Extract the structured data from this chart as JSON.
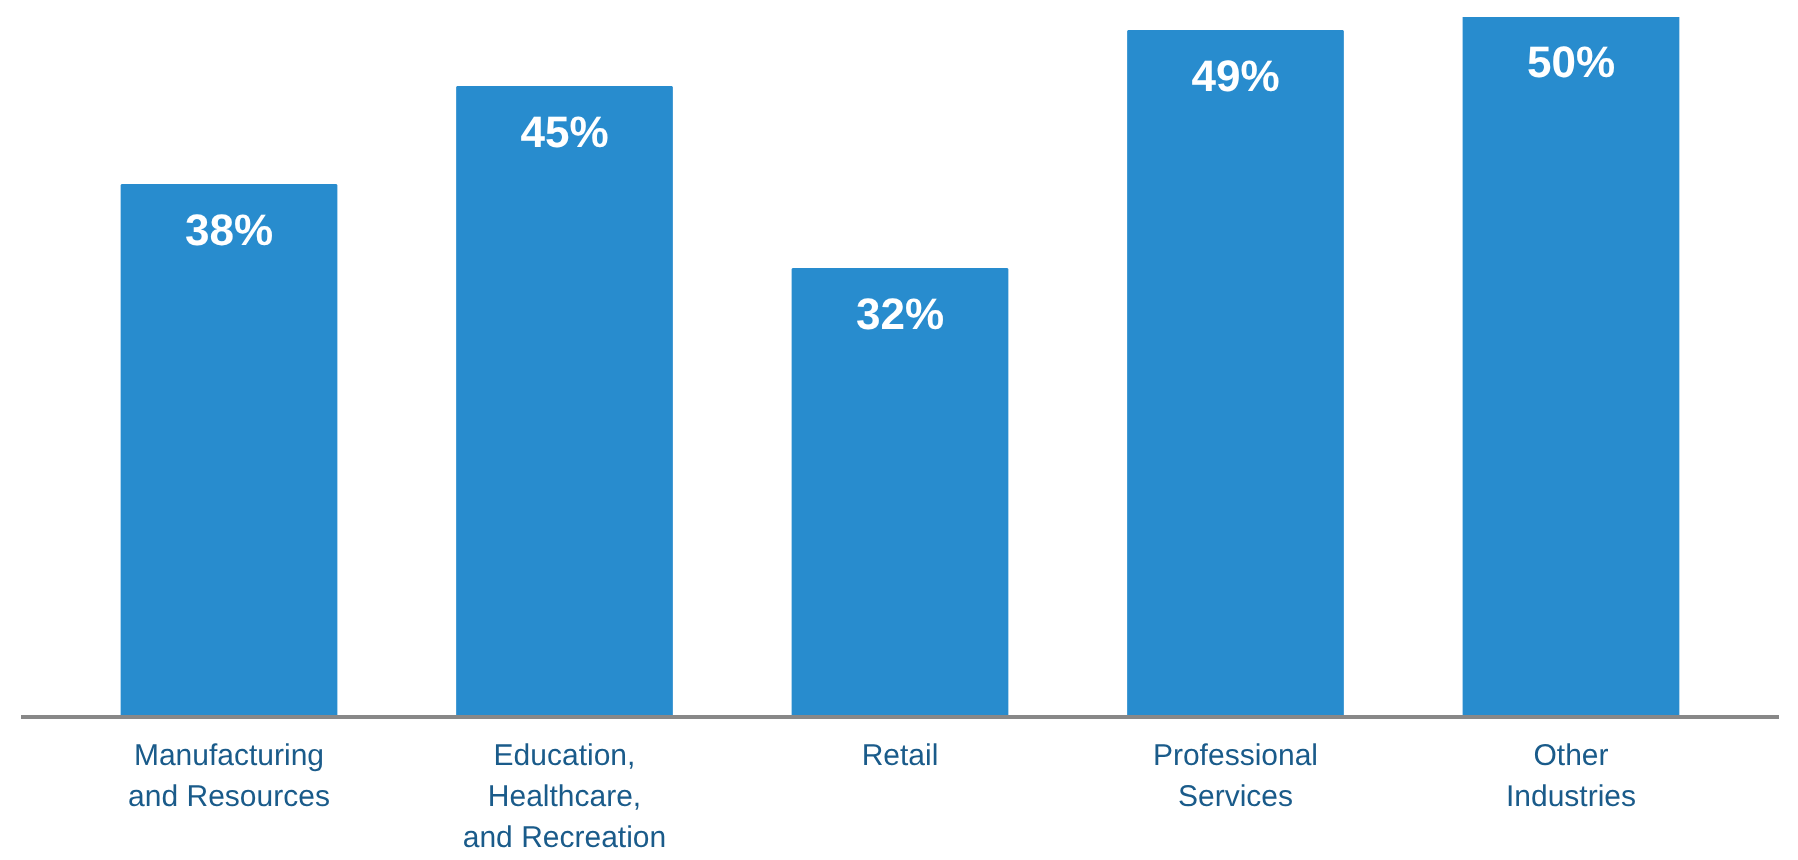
{
  "chart_data": {
    "type": "bar",
    "categories": [
      "Manufacturing\nand Resources",
      "Education,\nHealthcare,\nand Recreation",
      "Retail",
      "Professional\nServices",
      "Other\nIndustries"
    ],
    "values": [
      38,
      45,
      32,
      49,
      50
    ],
    "value_labels": [
      "38%",
      "45%",
      "32%",
      "49%",
      "50%"
    ],
    "color": "#288cce",
    "ylim": [
      0,
      50
    ],
    "tick_labels": "x"
  }
}
